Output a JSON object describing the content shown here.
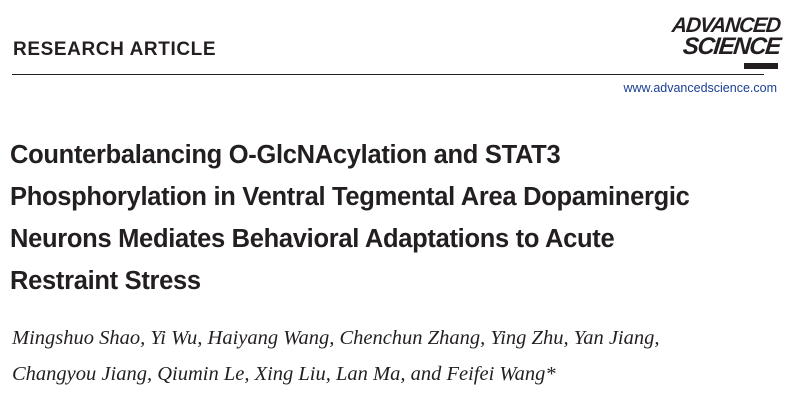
{
  "header": {
    "section_label": "RESEARCH ARTICLE",
    "journal_logo": {
      "line1": "ADVANCED",
      "line2": "SCIENCE"
    },
    "url": "www.advancedscience.com"
  },
  "article": {
    "title_lines": [
      "Counterbalancing O-GlcNAcylation and STAT3",
      "Phosphorylation in Ventral Tegmental Area Dopaminergic",
      "Neurons Mediates Behavioral Adaptations to Acute",
      "Restraint Stress"
    ],
    "author_lines": [
      "Mingshuo Shao, Yi Wu, Haiyang Wang, Chenchun Zhang, Ying Zhu, Yan Jiang,",
      "Changyou Jiang, Qiumin Le, Xing Liu, Lan Ma, and Feifei Wang*"
    ]
  },
  "colors": {
    "text": "#231f20",
    "link": "#1a3f95",
    "background": "#ffffff"
  }
}
